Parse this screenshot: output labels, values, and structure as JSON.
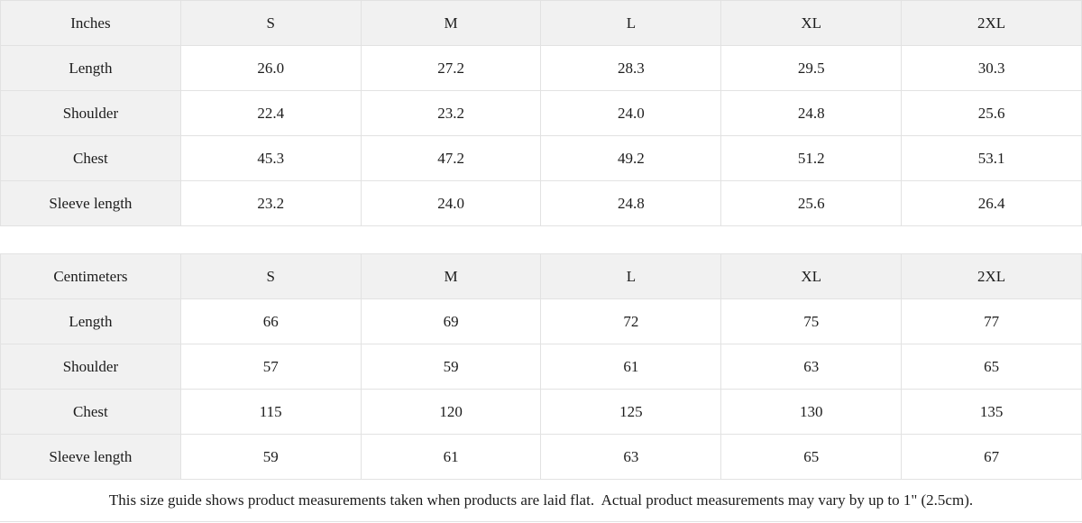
{
  "inches": {
    "unit_label": "Inches",
    "sizes": [
      "S",
      "M",
      "L",
      "XL",
      "2XL"
    ],
    "rows": [
      {
        "label": "Length",
        "values": [
          "26.0",
          "27.2",
          "28.3",
          "29.5",
          "30.3"
        ]
      },
      {
        "label": "Shoulder",
        "values": [
          "22.4",
          "23.2",
          "24.0",
          "24.8",
          "25.6"
        ]
      },
      {
        "label": "Chest",
        "values": [
          "45.3",
          "47.2",
          "49.2",
          "51.2",
          "53.1"
        ]
      },
      {
        "label": "Sleeve length",
        "values": [
          "23.2",
          "24.0",
          "24.8",
          "25.6",
          "26.4"
        ]
      }
    ]
  },
  "centimeters": {
    "unit_label": "Centimeters",
    "sizes": [
      "S",
      "M",
      "L",
      "XL",
      "2XL"
    ],
    "rows": [
      {
        "label": "Length",
        "values": [
          "66",
          "69",
          "72",
          "75",
          "77"
        ]
      },
      {
        "label": "Shoulder",
        "values": [
          "57",
          "59",
          "61",
          "63",
          "65"
        ]
      },
      {
        "label": "Chest",
        "values": [
          "115",
          "120",
          "125",
          "130",
          "135"
        ]
      },
      {
        "label": "Sleeve length",
        "values": [
          "59",
          "61",
          "63",
          "65",
          "67"
        ]
      }
    ]
  },
  "footer_note": "This size guide shows product measurements taken when products are laid flat.  Actual product measurements may vary by up to 1\" (2.5cm).",
  "colors": {
    "header_bg": "#f1f1f1",
    "border": "#e2e2e2",
    "text": "#1c1c1c",
    "cell_bg": "#ffffff"
  }
}
